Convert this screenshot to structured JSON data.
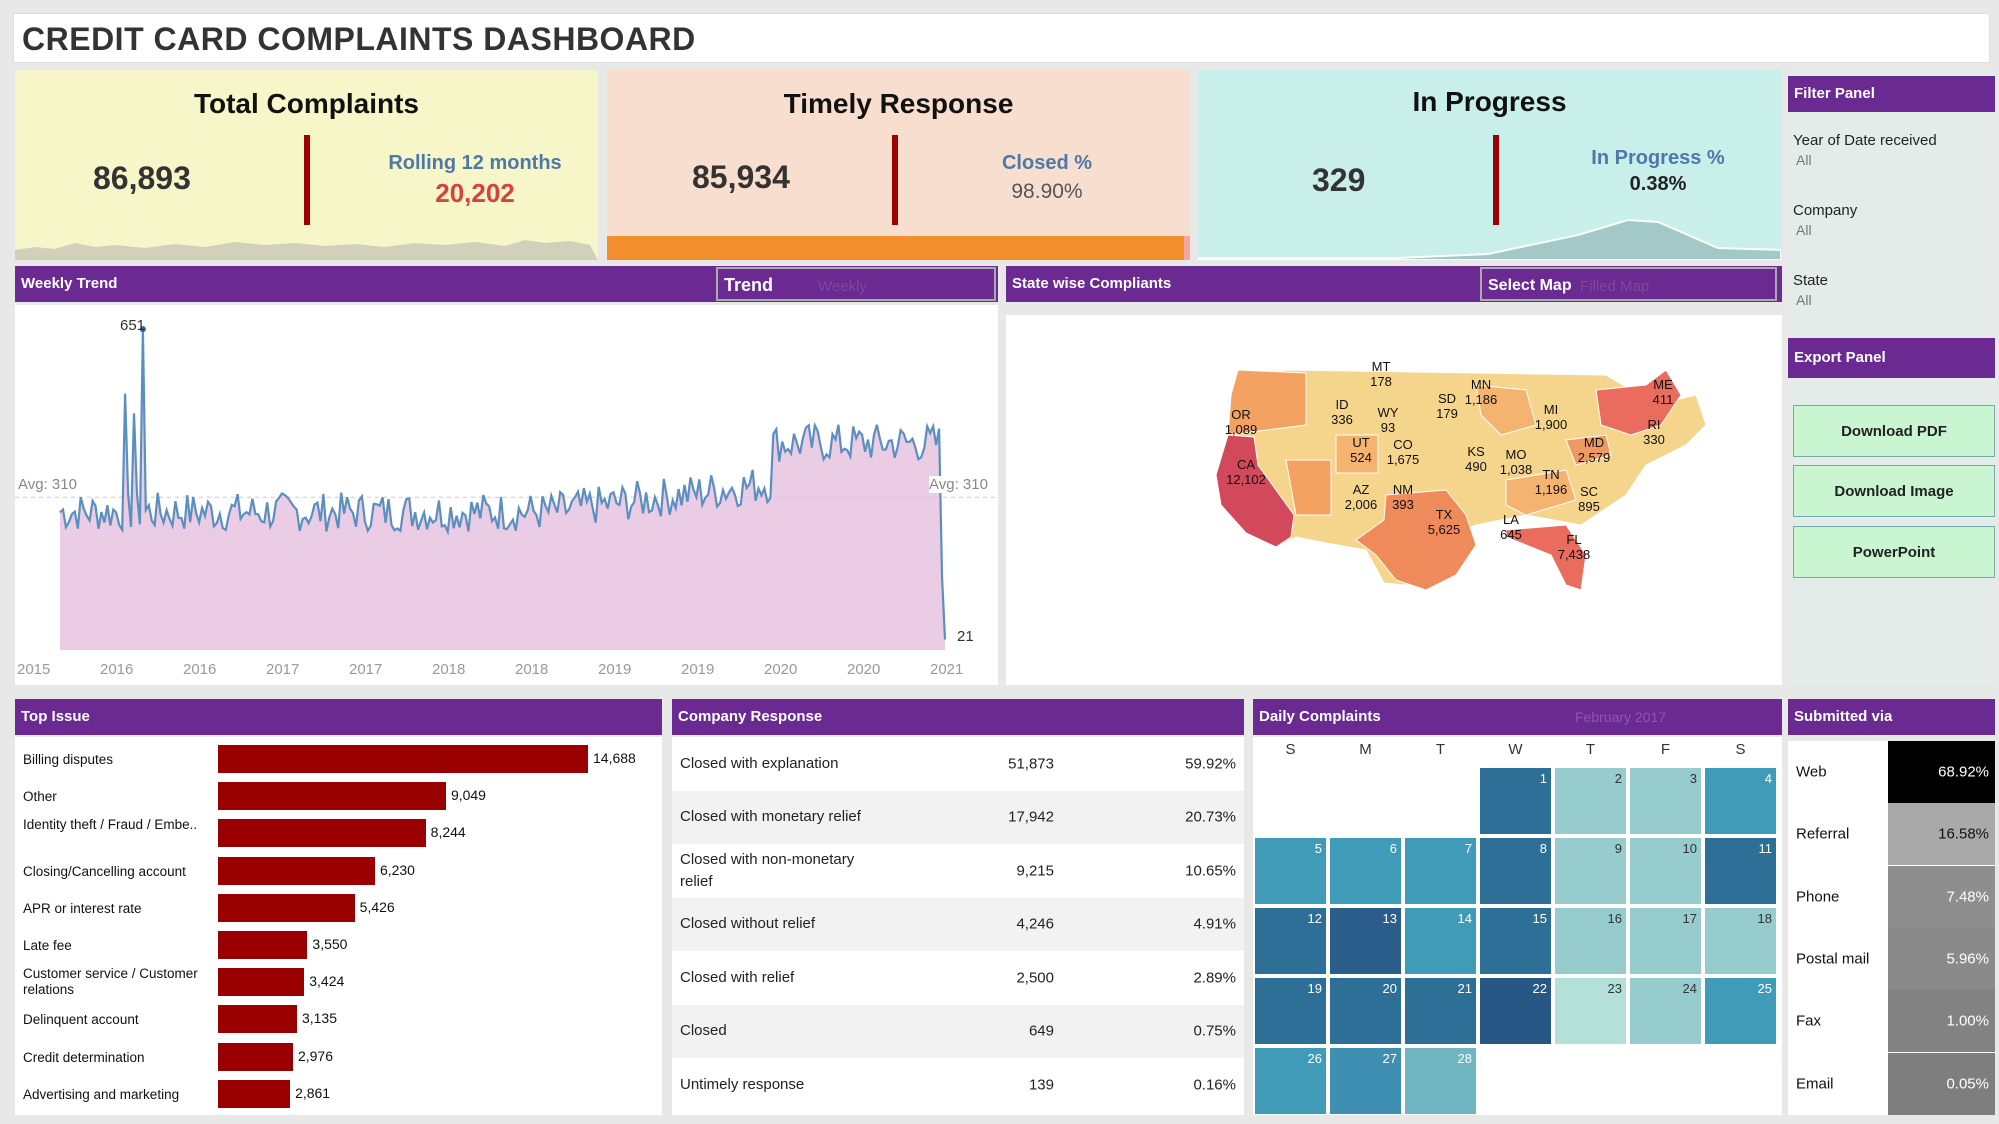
{
  "header": {
    "title": "CREDIT CARD COMPLAINTS DASHBOARD"
  },
  "kpi": {
    "total": {
      "title": "Total Complaints",
      "value": "86,893",
      "sub_label": "Rolling 12 months",
      "sub_value": "20,202"
    },
    "timely": {
      "title": "Timely Response",
      "value": "85,934",
      "sub_label": "Closed %",
      "sub_value": "98.90%",
      "progress": 0.989
    },
    "progress": {
      "title": "In Progress",
      "value": "329",
      "sub_label": "In Progress %",
      "sub_value": "0.38%"
    }
  },
  "weekly": {
    "title": "Weekly Trend",
    "selector_label": "Trend",
    "selector_value": "Weekly",
    "peak_label": "651",
    "end_label": "21",
    "avg_left": "Avg: 310",
    "avg_right": "Avg: 310",
    "x_ticks": [
      "2015",
      "2016",
      "2016",
      "2017",
      "2017",
      "2018",
      "2018",
      "2019",
      "2019",
      "2020",
      "2020",
      "2021"
    ]
  },
  "map": {
    "title": "State wise Compliants",
    "selector_label": "Select Map",
    "selector_value": "Filled Map",
    "states": [
      {
        "abbr": "OR",
        "value": "1,089"
      },
      {
        "abbr": "MT",
        "value": "178"
      },
      {
        "abbr": "ID",
        "value": "336"
      },
      {
        "abbr": "WY",
        "value": "93"
      },
      {
        "abbr": "SD",
        "value": "179"
      },
      {
        "abbr": "MN",
        "value": "1,186"
      },
      {
        "abbr": "ME",
        "value": "411"
      },
      {
        "abbr": "MI",
        "value": "1,900"
      },
      {
        "abbr": "RI",
        "value": "330"
      },
      {
        "abbr": "CA",
        "value": "12,102"
      },
      {
        "abbr": "UT",
        "value": "524"
      },
      {
        "abbr": "CO",
        "value": "1,675"
      },
      {
        "abbr": "KS",
        "value": "490"
      },
      {
        "abbr": "MO",
        "value": "1,038"
      },
      {
        "abbr": "MD",
        "value": "2,579"
      },
      {
        "abbr": "AZ",
        "value": "2,006"
      },
      {
        "abbr": "NM",
        "value": "393"
      },
      {
        "abbr": "TN",
        "value": "1,196"
      },
      {
        "abbr": "SC",
        "value": "895"
      },
      {
        "abbr": "TX",
        "value": "5,625"
      },
      {
        "abbr": "LA",
        "value": "645"
      },
      {
        "abbr": "FL",
        "value": "7,438"
      }
    ]
  },
  "top_issue": {
    "title": "Top Issue",
    "items": [
      {
        "label": "Billing disputes",
        "value": 14688,
        "display": "14,688"
      },
      {
        "label": "Other",
        "value": 9049,
        "display": "9,049"
      },
      {
        "label": "Identity theft / Fraud / Embe..",
        "value": 8244,
        "display": "8,244"
      },
      {
        "label": "Closing/Cancelling account",
        "value": 6230,
        "display": "6,230"
      },
      {
        "label": "APR or interest rate",
        "value": 5426,
        "display": "5,426"
      },
      {
        "label": "Late fee",
        "value": 3550,
        "display": "3,550"
      },
      {
        "label": "Customer service / Customer relations",
        "value": 3424,
        "display": "3,424"
      },
      {
        "label": "Delinquent account",
        "value": 3135,
        "display": "3,135"
      },
      {
        "label": "Credit determination",
        "value": 2976,
        "display": "2,976"
      },
      {
        "label": "Advertising and marketing",
        "value": 2861,
        "display": "2,861"
      }
    ]
  },
  "company_response": {
    "title": "Company Response",
    "rows": [
      {
        "label": "Closed with explanation",
        "count": "51,873",
        "pct": "59.92%"
      },
      {
        "label": "Closed with monetary relief",
        "count": "17,942",
        "pct": "20.73%"
      },
      {
        "label": "Closed with non-monetary relief",
        "count": "9,215",
        "pct": "10.65%"
      },
      {
        "label": "Closed without relief",
        "count": "4,246",
        "pct": "4.91%"
      },
      {
        "label": "Closed with relief",
        "count": "2,500",
        "pct": "2.89%"
      },
      {
        "label": "Closed",
        "count": "649",
        "pct": "0.75%"
      },
      {
        "label": "Untimely response",
        "count": "139",
        "pct": "0.16%"
      }
    ]
  },
  "daily": {
    "title": "Daily Complaints",
    "month_label": "February 2017",
    "weekdays": [
      "S",
      "M",
      "T",
      "W",
      "T",
      "F",
      "S"
    ],
    "days": [
      {
        "d": "1",
        "c": "#2e6f98"
      },
      {
        "d": "2",
        "c": "#96cccd"
      },
      {
        "d": "3",
        "c": "#96cccd"
      },
      {
        "d": "4",
        "c": "#3f9bb8"
      },
      {
        "d": "5",
        "c": "#3f9bb8"
      },
      {
        "d": "6",
        "c": "#3f9bb8"
      },
      {
        "d": "7",
        "c": "#3f9bb8"
      },
      {
        "d": "8",
        "c": "#2e6f98"
      },
      {
        "d": "9",
        "c": "#96cccd"
      },
      {
        "d": "10",
        "c": "#96cccd"
      },
      {
        "d": "11",
        "c": "#2e6f98"
      },
      {
        "d": "12",
        "c": "#2e6f98"
      },
      {
        "d": "13",
        "c": "#2a5d8a"
      },
      {
        "d": "14",
        "c": "#3f9bb8"
      },
      {
        "d": "15",
        "c": "#2e6f98"
      },
      {
        "d": "16",
        "c": "#96cccd"
      },
      {
        "d": "17",
        "c": "#96cccd"
      },
      {
        "d": "18",
        "c": "#96cccd"
      },
      {
        "d": "19",
        "c": "#2e6f98"
      },
      {
        "d": "20",
        "c": "#2e6f98"
      },
      {
        "d": "21",
        "c": "#2e6f98"
      },
      {
        "d": "22",
        "c": "#265785"
      },
      {
        "d": "23",
        "c": "#b3e0d9"
      },
      {
        "d": "24",
        "c": "#96cccd"
      },
      {
        "d": "25",
        "c": "#3f9bb8"
      },
      {
        "d": "26",
        "c": "#3f9bb8"
      },
      {
        "d": "27",
        "c": "#3f8fb2"
      },
      {
        "d": "28",
        "c": "#6fb5c2"
      }
    ]
  },
  "submitted": {
    "title": "Submitted via",
    "rows": [
      {
        "label": "Web",
        "pct": "68.92%",
        "c": "#000000"
      },
      {
        "label": "Referral",
        "pct": "16.58%",
        "c": "#a9a9a9"
      },
      {
        "label": "Phone",
        "pct": "7.48%",
        "c": "#8e8e8e"
      },
      {
        "label": "Postal mail",
        "pct": "5.96%",
        "c": "#8a8a8a"
      },
      {
        "label": "Fax",
        "pct": "1.00%",
        "c": "#828282"
      },
      {
        "label": "Email",
        "pct": "0.05%",
        "c": "#7e7e7e"
      }
    ]
  },
  "filter_panel": {
    "title": "Filter Panel",
    "filters": [
      {
        "label": "Year of Date received",
        "value": "All"
      },
      {
        "label": "Company",
        "value": "All"
      },
      {
        "label": "State",
        "value": "All"
      }
    ]
  },
  "export_panel": {
    "title": "Export Panel",
    "buttons": [
      "Download PDF",
      "Download Image",
      "PowerPoint"
    ]
  },
  "colors": {
    "accent": "#6a2a92",
    "bar": "#9b0000",
    "kpi1": "#f6f6c8",
    "kpi2": "#f8decf",
    "kpi3": "#c9efeb"
  }
}
